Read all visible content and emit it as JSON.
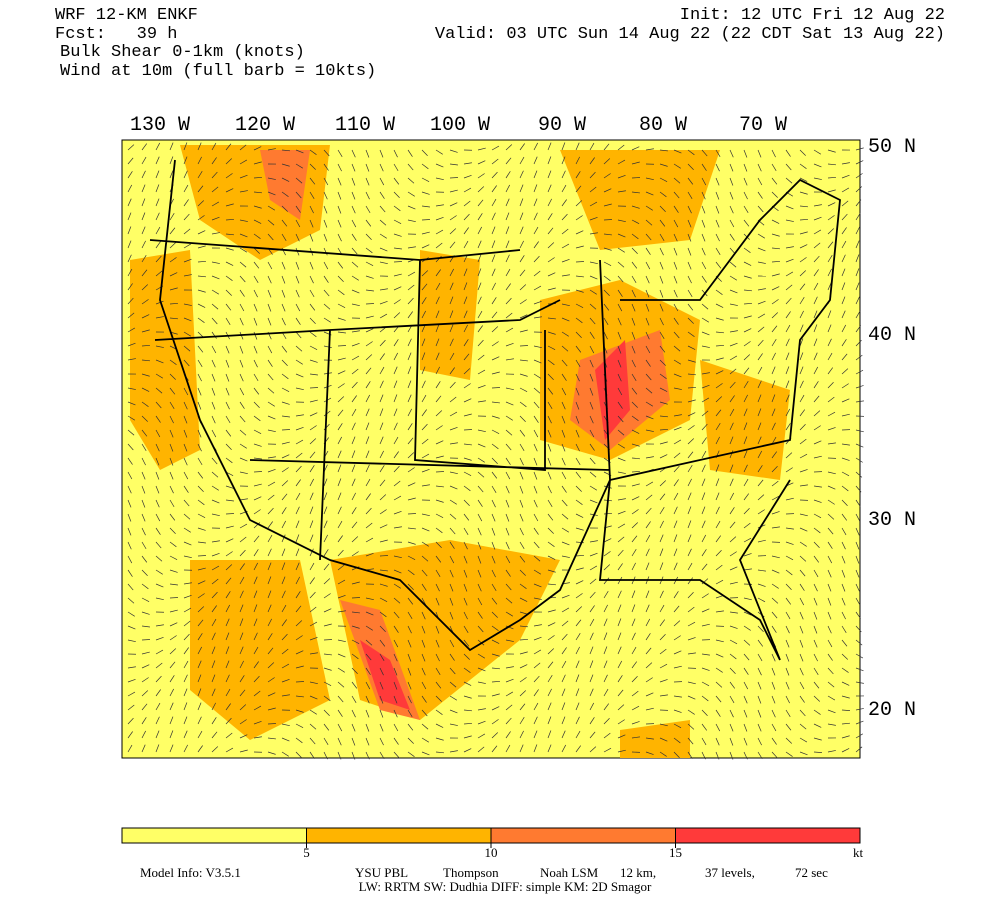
{
  "header": {
    "model": "WRF 12-KM ENKF",
    "forecast": "Fcst:   39 h",
    "field": "Bulk Shear 0-1km (knots)",
    "wind": "Wind at 10m (full barb = 10kts)",
    "init": "Init: 12 UTC Fri 12 Aug 22",
    "valid": "Valid: 03 UTC Sun 14 Aug 22 (22 CDT Sat 13 Aug 22)"
  },
  "map": {
    "lon_labels": [
      "130 W",
      "120 W",
      "110 W",
      "100 W",
      "90 W",
      "80 W",
      "70 W"
    ],
    "lat_labels": [
      "50 N",
      "40 N",
      "30 N",
      "20 N"
    ]
  },
  "colorbar": {
    "colors": [
      "#ffff66",
      "#ffb400",
      "#ff7a30",
      "#ff3a3a"
    ],
    "ticks": [
      5,
      10,
      15
    ],
    "unit": "kt"
  },
  "footer": {
    "line1": [
      "Model Info: V3.5.1",
      "YSU PBL",
      "Thompson",
      "Noah LSM",
      "12 km,",
      "37 levels,",
      "72 sec"
    ],
    "line2": "LW: RRTM SW: Dudhia  DIFF: simple KM: 2D Smagor"
  }
}
